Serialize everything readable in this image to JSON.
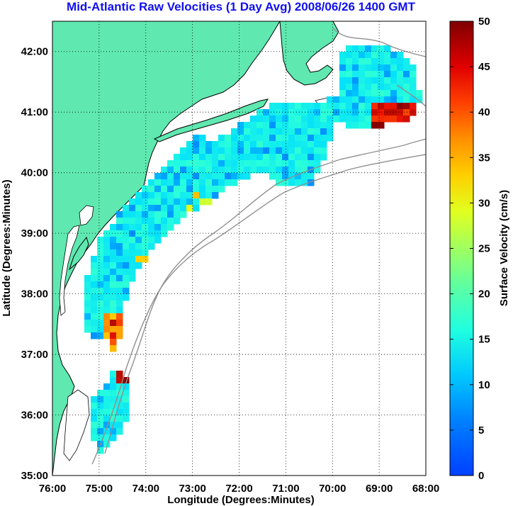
{
  "title": "Mid-Atlantic Raw Velocities (1 Day Avg) 2008/06/26 1400 GMT",
  "map": {
    "xlabel": "Longitude (Degrees:Minutes)",
    "ylabel": "Latitude (Degrees:Minutes)",
    "lon_range": [
      -76,
      -68
    ],
    "lat_range": [
      35,
      42.5
    ],
    "x_ticks": [
      "76:00",
      "75:00",
      "74:00",
      "73:00",
      "72:00",
      "71:00",
      "70:00",
      "69:00",
      "68:00"
    ],
    "y_ticks": [
      "35:00",
      "36:00",
      "37:00",
      "38:00",
      "39:00",
      "40:00",
      "41:00",
      "42:00"
    ],
    "grid": "dotted",
    "land_color": "#5fe8b0",
    "coast_color": "#000000",
    "bathymetry_color": "#909090"
  },
  "colorbar": {
    "label": "Surface Velocity (cm/s)",
    "min": 0,
    "max": 50,
    "ticks": [
      "0",
      "5",
      "10",
      "15",
      "20",
      "25",
      "30",
      "35",
      "40",
      "45",
      "50"
    ],
    "colormap": "jet"
  }
}
